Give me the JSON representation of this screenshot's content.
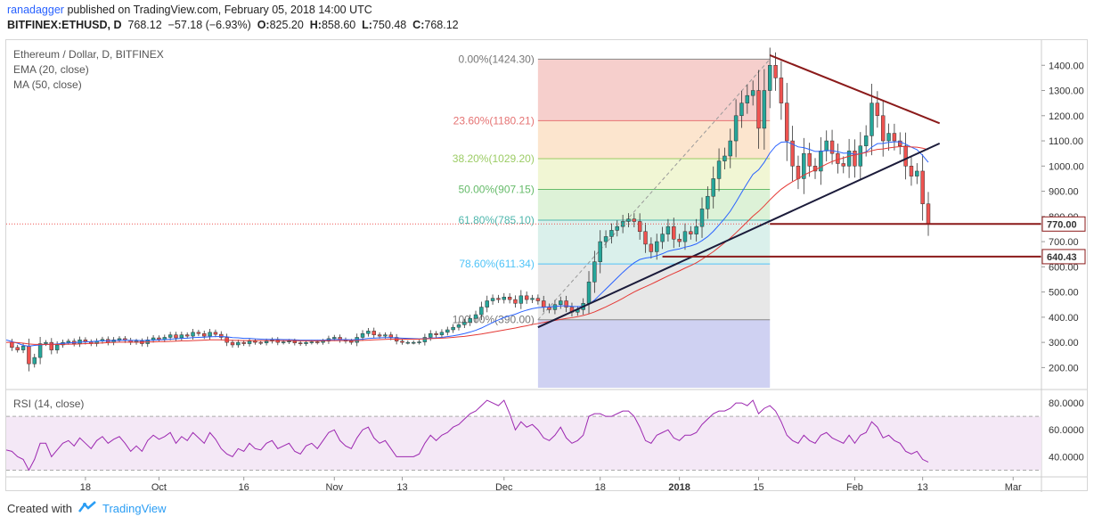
{
  "header": {
    "author": "ranadagger",
    "published": "published on TradingView.com, February 05, 2018 14:00 UTC",
    "symbol": "BITFINEX:ETHUSD, D",
    "close_val": "768.12",
    "change": "−57.18 (−6.93%)",
    "o_label": "O:",
    "o_val": "825.20",
    "h_label": "H:",
    "h_val": "858.60",
    "l_label": "L:",
    "l_val": "750.48",
    "c_label": "C:",
    "c_val": "768.12"
  },
  "footer": {
    "created_with": "Created with",
    "brand": "TradingView"
  },
  "colors": {
    "up": "#26a69a",
    "down": "#ef5350",
    "ema": "#2962ff",
    "ma": "#e53935",
    "trendline": "#1b1b3a",
    "resistance": "#8b1a1a",
    "support": "#8b1a1a",
    "rsi": "#9c27b0"
  },
  "chart_data": [
    {
      "type": "candlestick",
      "title": "Ethereum / Dollar, D, BITFINEX",
      "indicators": [
        "EMA (20, close)",
        "MA (50, close)"
      ],
      "ylim": [
        120,
        1500
      ],
      "y_ticks": [
        200,
        300,
        400,
        500,
        600,
        700,
        800,
        900,
        1000,
        1100,
        1200,
        1300,
        1400
      ],
      "x_labels": [
        {
          "label": "18",
          "day": 14
        },
        {
          "label": "Oct",
          "day": 27
        },
        {
          "label": "16",
          "day": 42
        },
        {
          "label": "Nov",
          "day": 58
        },
        {
          "label": "13",
          "day": 70
        },
        {
          "label": "Dec",
          "day": 88
        },
        {
          "label": "18",
          "day": 105
        },
        {
          "label": "2018",
          "day": 119
        },
        {
          "label": "15",
          "day": 133
        },
        {
          "label": "Feb",
          "day": 150
        },
        {
          "label": "13",
          "day": 162
        },
        {
          "label": "Mar",
          "day": 178
        }
      ],
      "x_range_days": [
        0,
        183
      ],
      "closes": [
        300,
        280,
        270,
        285,
        215,
        240,
        295,
        300,
        270,
        290,
        300,
        305,
        295,
        310,
        302,
        295,
        305,
        312,
        300,
        310,
        315,
        308,
        300,
        305,
        295,
        310,
        318,
        312,
        320,
        330,
        318,
        330,
        325,
        340,
        335,
        325,
        340,
        332,
        320,
        300,
        290,
        300,
        295,
        305,
        300,
        298,
        305,
        310,
        300,
        302,
        305,
        298,
        295,
        300,
        302,
        300,
        305,
        315,
        320,
        310,
        305,
        300,
        320,
        335,
        345,
        330,
        325,
        330,
        320,
        305,
        300,
        300,
        300,
        302,
        320,
        335,
        330,
        340,
        350,
        360,
        370,
        380,
        395,
        410,
        440,
        465,
        475,
        470,
        480,
        470,
        455,
        485,
        470,
        475,
        465,
        440,
        430,
        450,
        465,
        440,
        420,
        430,
        455,
        540,
        620,
        700,
        720,
        745,
        760,
        780,
        790,
        780,
        740,
        690,
        660,
        700,
        730,
        760,
        710,
        700,
        740,
        730,
        760,
        830,
        880,
        950,
        1020,
        1040,
        1100,
        1200,
        1250,
        1280,
        1300,
        1150,
        1300,
        1400,
        1350,
        1250,
        1100,
        1000,
        950,
        1050,
        1000,
        980,
        1060,
        1100,
        1050,
        1010,
        1000,
        1060,
        1000,
        1080,
        1120,
        1250,
        1200,
        1100,
        1130,
        1100,
        1080,
        1000,
        960,
        980,
        850,
        770
      ],
      "ema20": [
        310,
        303,
        297,
        288,
        285,
        288,
        290,
        292,
        292,
        294,
        296,
        298,
        299,
        301,
        302,
        303,
        305,
        306,
        306,
        307,
        308,
        309,
        308,
        308,
        307,
        308,
        309,
        310,
        311,
        313,
        314,
        316,
        317,
        319,
        320,
        321,
        322,
        323,
        323,
        322,
        319,
        318,
        316,
        316,
        314,
        313,
        312,
        312,
        312,
        311,
        311,
        310,
        309,
        309,
        309,
        309,
        309,
        310,
        311,
        311,
        311,
        310,
        311,
        313,
        316,
        317,
        318,
        319,
        319,
        318,
        317,
        316,
        315,
        314,
        315,
        317,
        318,
        320,
        323,
        326,
        330,
        335,
        341,
        348,
        357,
        368,
        379,
        389,
        399,
        406,
        412,
        421,
        428,
        434,
        438,
        440,
        441,
        442,
        445,
        445,
        443,
        442,
        443,
        452,
        468,
        490,
        512,
        534,
        556,
        578,
        598,
        616,
        629,
        635,
        638,
        644,
        652,
        662,
        667,
        671,
        678,
        683,
        691,
        704,
        720,
        741,
        766,
        792,
        821,
        857,
        895,
        932,
        967,
        985,
        1015,
        1052,
        1079,
        1095,
        1096,
        1087,
        1076,
        1073,
        1066,
        1058,
        1058,
        1062,
        1061,
        1057,
        1051,
        1052,
        1046,
        1049,
        1056,
        1075,
        1089,
        1090,
        1094,
        1096,
        1096,
        1087,
        1075,
        1065,
        1042,
        1015
      ],
      "ma50": [
        300,
        300,
        299,
        297,
        294,
        292,
        292,
        292,
        292,
        292,
        292,
        293,
        293,
        294,
        295,
        296,
        297,
        298,
        299,
        300,
        301,
        301,
        301,
        301,
        301,
        302,
        302,
        303,
        303,
        304,
        305,
        306,
        306,
        307,
        308,
        309,
        310,
        310,
        310,
        309,
        308,
        308,
        307,
        307,
        307,
        307,
        307,
        307,
        307,
        307,
        307,
        307,
        306,
        306,
        306,
        306,
        306,
        307,
        307,
        307,
        307,
        307,
        307,
        308,
        309,
        310,
        311,
        312,
        313,
        313,
        313,
        313,
        313,
        313,
        314,
        315,
        316,
        317,
        318,
        320,
        322,
        324,
        327,
        330,
        333,
        337,
        341,
        345,
        349,
        353,
        357,
        362,
        366,
        371,
        375,
        379,
        383,
        387,
        391,
        395,
        398,
        402,
        407,
        413,
        421,
        431,
        441,
        452,
        463,
        475,
        488,
        500,
        511,
        521,
        531,
        542,
        553,
        564,
        574,
        584,
        595,
        605,
        616,
        630,
        645,
        660,
        678,
        696,
        714,
        735,
        757,
        779,
        801,
        820,
        842,
        866,
        888,
        908,
        924,
        938,
        950,
        964,
        975,
        985,
        996,
        1008,
        1018,
        1026,
        1032,
        1039,
        1044,
        1049,
        1054,
        1061,
        1066,
        1068,
        1072,
        1075,
        1077,
        1077,
        1076,
        1075,
        1071,
        1065
      ]
    },
    {
      "type": "fibonacci",
      "levels": [
        {
          "label": "0.00%(1424.30)",
          "ratio": 0.0,
          "price": 1424.3
        },
        {
          "label": "23.60%(1180.21)",
          "ratio": 0.236,
          "price": 1180.21
        },
        {
          "label": "38.20%(1029.20)",
          "ratio": 0.382,
          "price": 1029.2
        },
        {
          "label": "50.00%(907.15)",
          "ratio": 0.5,
          "price": 907.15
        },
        {
          "label": "61.80%(785.10)",
          "ratio": 0.618,
          "price": 785.1
        },
        {
          "label": "78.60%(611.34)",
          "ratio": 0.786,
          "price": 611.34
        },
        {
          "label": "100.00%(390.00)",
          "ratio": 1.0,
          "price": 390.0
        }
      ],
      "start_day": 94,
      "end_day": 135,
      "fills": [
        "#f4c7c3",
        "#fbe1c6",
        "#eef5cd",
        "#d7f0d0",
        "#d3ede7",
        "#e3e3e3",
        "#cfd1f2"
      ]
    },
    {
      "type": "annotations",
      "lines": [
        {
          "name": "support-trendline",
          "from": {
            "day": 94,
            "price": 360
          },
          "to": {
            "day": 165,
            "price": 1090
          }
        },
        {
          "name": "resistance-trendline",
          "from": {
            "day": 135,
            "price": 1440
          },
          "to": {
            "day": 165,
            "price": 1170
          }
        },
        {
          "name": "support-770",
          "from": {
            "day": 135,
            "price": 770
          },
          "to": {
            "day": 188,
            "price": 770
          }
        },
        {
          "name": "support-640",
          "from": {
            "day": 116,
            "price": 640.43
          },
          "to": {
            "day": 188,
            "price": 640.43
          }
        }
      ],
      "price_labels": [
        {
          "text": "770.00",
          "price": 770.0,
          "color": "#8b1a1a"
        },
        {
          "text": "640.43",
          "price": 640.43,
          "color": "#8b1a1a"
        }
      ]
    },
    {
      "type": "line",
      "title": "RSI (14, close)",
      "ylim": [
        25,
        90
      ],
      "y_ticks": [
        40,
        60,
        80
      ],
      "y_tick_labels": [
        "40.0000",
        "60.0000",
        "80.0000"
      ],
      "bands": [
        30,
        70
      ],
      "values": [
        45,
        44,
        40,
        38,
        30,
        38,
        50,
        50,
        40,
        45,
        50,
        52,
        48,
        54,
        50,
        46,
        52,
        55,
        50,
        53,
        55,
        50,
        44,
        48,
        44,
        52,
        56,
        53,
        55,
        58,
        50,
        55,
        52,
        58,
        54,
        50,
        58,
        53,
        46,
        42,
        40,
        46,
        44,
        50,
        46,
        45,
        50,
        52,
        46,
        48,
        50,
        44,
        42,
        48,
        50,
        46,
        52,
        58,
        60,
        52,
        48,
        46,
        54,
        60,
        62,
        54,
        50,
        52,
        46,
        40,
        40,
        40,
        40,
        42,
        50,
        56,
        52,
        56,
        58,
        62,
        64,
        68,
        72,
        74,
        78,
        82,
        80,
        78,
        82,
        72,
        60,
        66,
        62,
        64,
        60,
        54,
        52,
        56,
        62,
        54,
        50,
        52,
        56,
        70,
        72,
        72,
        70,
        70,
        72,
        74,
        74,
        70,
        62,
        52,
        50,
        56,
        58,
        60,
        54,
        52,
        56,
        56,
        58,
        64,
        68,
        72,
        74,
        74,
        76,
        80,
        80,
        78,
        82,
        72,
        76,
        78,
        74,
        66,
        56,
        52,
        50,
        56,
        52,
        50,
        56,
        58,
        54,
        52,
        50,
        56,
        50,
        56,
        58,
        66,
        62,
        54,
        56,
        52,
        50,
        44,
        42,
        44,
        38,
        36
      ]
    }
  ],
  "price_axis": {
    "last_price_label": "770.00",
    "support_label": "640.43"
  }
}
